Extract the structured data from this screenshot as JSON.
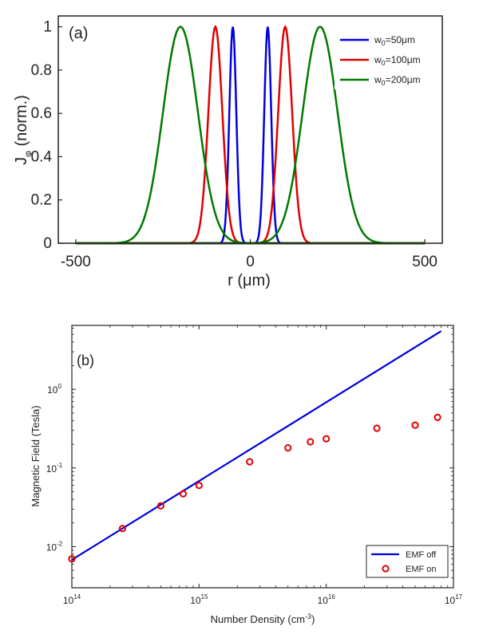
{
  "colors": {
    "blue": "#0000e0",
    "red": "#e00000",
    "green": "#007a00",
    "axis": "#222222"
  },
  "chart_data": [
    {
      "type": "line",
      "panel_label": "(a)",
      "xlabel": "r (μm)",
      "ylabel": "Jφ (norm.)",
      "xlim": [
        -550,
        550
      ],
      "ylim": [
        0,
        1.05
      ],
      "xticks": [
        -500,
        0,
        500
      ],
      "xtick_labels": [
        "-500",
        "0",
        "500"
      ],
      "yticks": [
        0,
        0.2,
        0.4,
        0.6,
        0.8,
        1
      ],
      "ytick_labels": [
        "0",
        "0.2",
        "0.4",
        "0.6",
        "0.8",
        "1"
      ],
      "legend_position": "top-right",
      "series": [
        {
          "name": "w0=50μm",
          "legend_main": "w",
          "legend_sub": "0",
          "legend_rest": "=50μm",
          "color": "#0000e0",
          "peak_r": 50,
          "width": 10
        },
        {
          "name": "w0=100μm",
          "legend_main": "w",
          "legend_sub": "0",
          "legend_rest": "=100μm",
          "color": "#e00000",
          "peak_r": 100,
          "width": 20
        },
        {
          "name": "w0=200μm",
          "legend_main": "w",
          "legend_sub": "0",
          "legend_rest": "=200μm",
          "color": "#007a00",
          "peak_r": 200,
          "width": 50
        }
      ]
    },
    {
      "type": "scatter",
      "panel_label": "(b)",
      "xlabel": "Number Density (cm⁻³)",
      "ylabel": "Magnetic Field (Tesla)",
      "xscale": "log",
      "yscale": "log",
      "xlim": [
        100000000000000.0,
        1e+17
      ],
      "ylim": [
        0.003,
        6.5
      ],
      "xticks": [
        100000000000000.0,
        1000000000000000.0,
        1e+16,
        1e+17
      ],
      "xtick_base": [
        "10",
        "10",
        "10",
        "10"
      ],
      "xtick_exp": [
        "14",
        "15",
        "16",
        "17"
      ],
      "yticks": [
        0.01,
        0.1,
        1
      ],
      "ytick_base": [
        "10",
        "10",
        "10"
      ],
      "ytick_exp": [
        "-2",
        "-1",
        "0"
      ],
      "legend_position": "bottom-right",
      "line": {
        "name": "EMF off",
        "x": [
          100000000000000.0,
          8e+16
        ],
        "y": [
          0.0068,
          5.5
        ]
      },
      "points": {
        "name": "EMF on",
        "x": [
          100000000000000.0,
          250000000000000.0,
          500000000000000.0,
          750000000000000.0,
          1000000000000000.0,
          2500000000000000.0,
          5000000000000000.0,
          7500000000000000.0,
          1e+16,
          2.5e+16,
          5e+16,
          7.5e+16
        ],
        "y": [
          0.007,
          0.017,
          0.033,
          0.047,
          0.06,
          0.12,
          0.18,
          0.215,
          0.235,
          0.32,
          0.35,
          0.44
        ]
      }
    }
  ]
}
